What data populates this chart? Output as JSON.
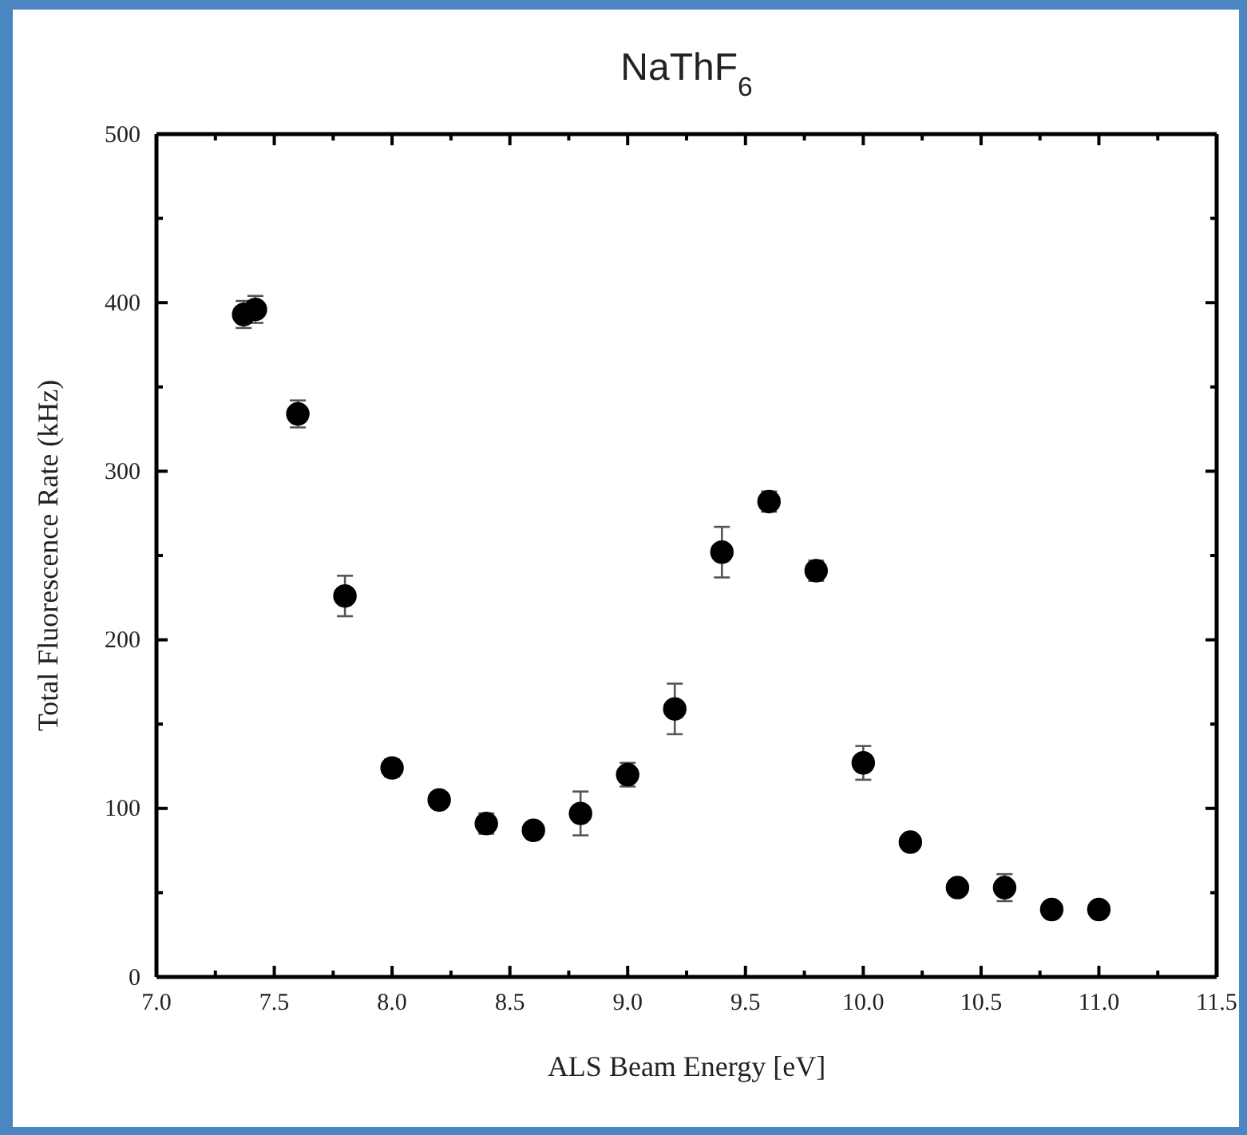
{
  "chart_data": {
    "type": "scatter",
    "title": "NaThF$_{6}$",
    "xlabel": "ALS Beam Energy [eV]",
    "ylabel": "Total Fluorescence Rate (kHz)",
    "x": [
      7.37,
      7.42,
      7.6,
      7.8,
      8.0,
      8.2,
      8.4,
      8.6,
      8.8,
      9.0,
      9.2,
      9.4,
      9.6,
      9.8,
      10.0,
      10.2,
      10.4,
      10.6,
      10.8,
      11.0
    ],
    "series": [
      {
        "color": "#000000",
        "values": [
          393,
          396,
          334,
          226,
          124,
          105,
          91,
          87,
          97,
          120,
          159,
          252,
          282,
          241,
          127,
          80,
          53,
          53,
          40,
          40
        ],
        "errors": [
          8,
          8,
          8,
          12,
          5,
          null,
          6,
          null,
          13,
          7,
          15,
          15,
          6,
          6,
          10,
          null,
          null,
          8,
          null,
          null
        ]
      }
    ],
    "marker": "circle",
    "grid": false,
    "xlim": [
      7.0,
      11.5
    ],
    "xticks": [
      {
        "value": 7.0,
        "label": "7.0"
      },
      {
        "value": 7.25,
        "label": null
      },
      {
        "value": 7.5,
        "label": "7.5"
      },
      {
        "value": 7.75,
        "label": null
      },
      {
        "value": 8.0,
        "label": "8.0"
      },
      {
        "value": 8.25,
        "label": null
      },
      {
        "value": 8.5,
        "label": "8.5"
      },
      {
        "value": 8.75,
        "label": null
      },
      {
        "value": 9.0,
        "label": "9.0"
      },
      {
        "value": 9.25,
        "label": null
      },
      {
        "value": 9.5,
        "label": "9.5"
      },
      {
        "value": 9.75,
        "label": null
      },
      {
        "value": 10.0,
        "label": "10.0"
      },
      {
        "value": 10.25,
        "label": null
      },
      {
        "value": 10.5,
        "label": "10.5"
      },
      {
        "value": 10.75,
        "label": null
      },
      {
        "value": 11.0,
        "label": "11.0"
      },
      {
        "value": 11.25,
        "label": null
      },
      {
        "value": 11.5,
        "label": "11.5"
      }
    ],
    "ylim": [
      0,
      500
    ],
    "yticks": [
      0,
      {
        "value": 50,
        "label": null
      },
      100,
      {
        "value": 150,
        "label": null
      },
      200,
      {
        "value": 250,
        "label": null
      },
      300,
      {
        "value": 350,
        "label": null
      },
      400,
      {
        "value": 450,
        "label": null
      },
      500
    ]
  }
}
